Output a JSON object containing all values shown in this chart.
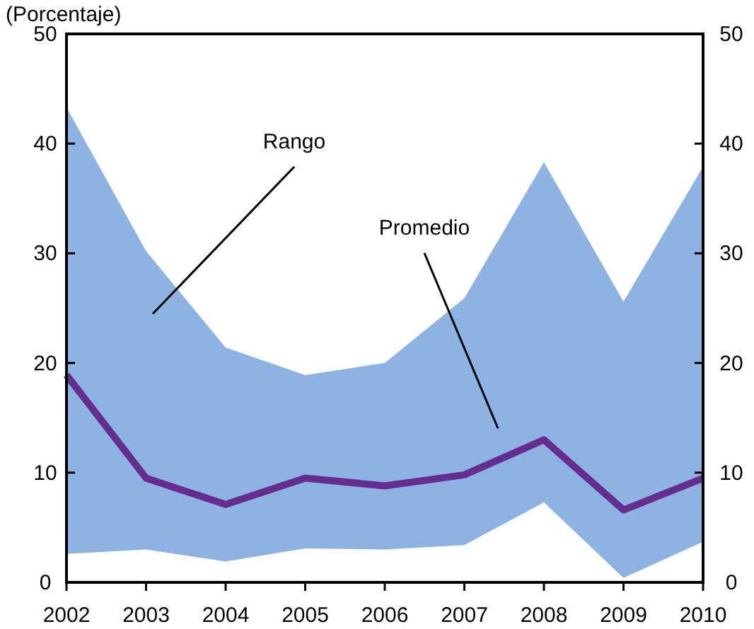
{
  "chart_data": {
    "type": "line",
    "title": "(Porcentaje)",
    "x": [
      2002,
      2003,
      2004,
      2005,
      2006,
      2007,
      2008,
      2009,
      2010
    ],
    "series": [
      {
        "type": "area",
        "color": "#8db3e2",
        "values": [
          43.3,
          30.2,
          21.4,
          18.9,
          20.0,
          25.9,
          38.3,
          25.6,
          37.9
        ]
      },
      {
        "type": "area",
        "color": "#ffffff",
        "values": [
          2.6,
          3.0,
          1.9,
          3.1,
          3.0,
          3.4,
          7.3,
          0.4,
          3.7
        ]
      },
      {
        "color": "#662d91",
        "values": [
          18.9,
          9.5,
          7.1,
          9.5,
          8.8,
          9.8,
          13.0,
          6.6,
          9.5
        ]
      }
    ],
    "xlim": [
      2002,
      2010
    ],
    "xticks": [
      2002,
      2003,
      2004,
      2005,
      2006,
      2007,
      2008,
      2009,
      2010
    ],
    "ylim": [
      0,
      50
    ],
    "yticks": [
      0,
      10,
      20,
      30,
      40,
      50
    ],
    "y2lim": [
      0,
      50
    ],
    "y2ticks": [
      0,
      10,
      20,
      30,
      40,
      50
    ],
    "grid": false,
    "marker": "none",
    "line_style": "solid",
    "annotations": [
      "Rango",
      "Promedio"
    ]
  }
}
